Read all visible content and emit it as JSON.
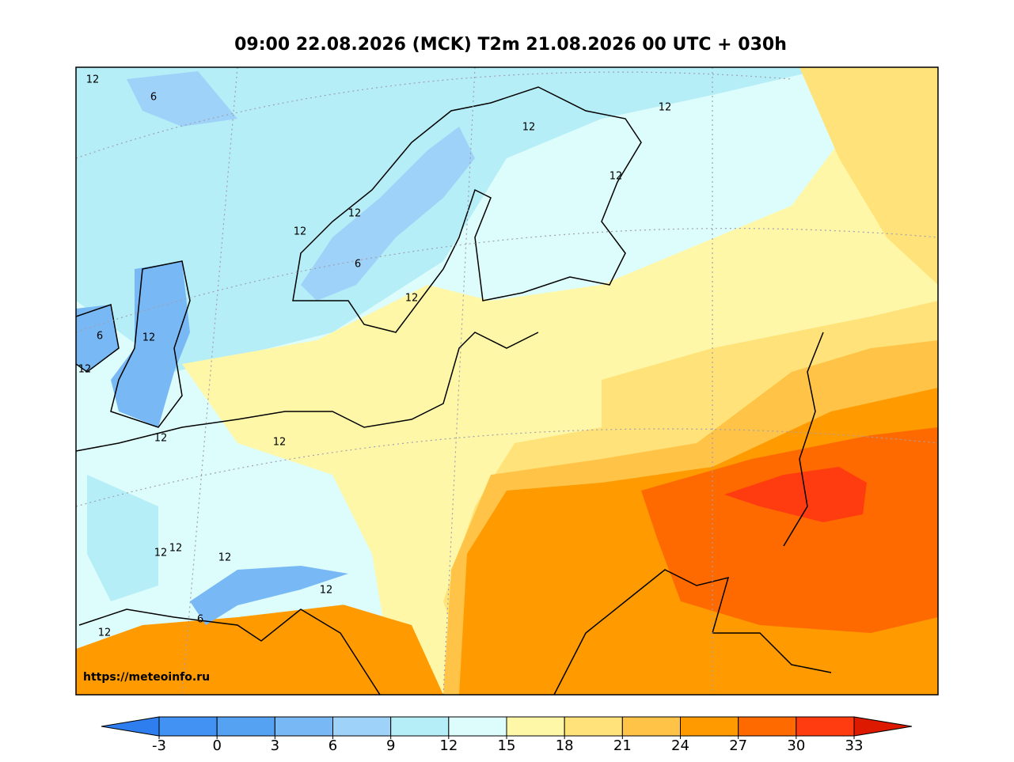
{
  "header": {
    "title": "09:00 22.08.2026 (MCK) T2m 21.08.2026 00 UTC + 030h"
  },
  "map": {
    "contour_labels": [
      "12",
      "6",
      "12",
      "12",
      "12",
      "12",
      "12",
      "6",
      "12",
      "6",
      "12",
      "12",
      "12",
      "12",
      "12",
      "12",
      "12",
      "6",
      "12"
    ],
    "watermark": "https://meteoinfo.ru"
  },
  "colorbar": {
    "levels": [
      -3,
      0,
      3,
      6,
      9,
      12,
      15,
      18,
      21,
      24,
      27,
      30,
      33
    ],
    "colors": [
      "#2f7ef0",
      "#4192f2",
      "#55a2f3",
      "#78b9f5",
      "#9fd2f8",
      "#b5eef7",
      "#ddfcfc",
      "#fff7a8",
      "#ffe37a",
      "#ffc447",
      "#ff9a00",
      "#ff6a00",
      "#ff3b10",
      "#dd1a00"
    ]
  }
}
